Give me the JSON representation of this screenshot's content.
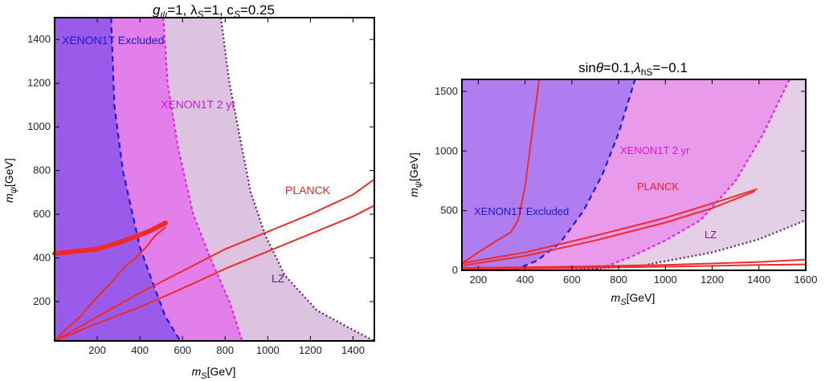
{
  "chart_data": [
    {
      "type": "area",
      "title_parts": [
        "g",
        "ψ",
        "=1, λ",
        "S",
        "=1, c",
        "S",
        "=0.25"
      ],
      "xlabel_parts": [
        "m",
        "S",
        "[GeV]"
      ],
      "ylabel_parts": [
        "m",
        "ψ",
        "[GeV]"
      ],
      "xlim": [
        0,
        1500
      ],
      "ylim": [
        20,
        1500
      ],
      "xticks": [
        200,
        400,
        600,
        800,
        1000,
        1200,
        1400
      ],
      "yticks": [
        200,
        400,
        600,
        800,
        1000,
        1200,
        1400
      ],
      "labels": {
        "xenon1t_excluded": "XENON1T Excluded",
        "xenon1t_2yr": "XENON1T 2 yr",
        "planck": "PLANCK",
        "lz": "LZ"
      },
      "colors": {
        "xenon1t_excluded": "#9a5bea",
        "xenon1t_2yr": "#e27fea",
        "lz": "#dcc3e0",
        "xenon1t_line": "#1a1ae6",
        "xenon2yr_line": "#f01ef0",
        "lz_line": "#5a1a6e",
        "planck": "#ee2a2a"
      },
      "boundaries": {
        "xenon1t_excluded": [
          [
            265,
            1500
          ],
          [
            280,
            1100
          ],
          [
            320,
            800
          ],
          [
            400,
            450
          ],
          [
            470,
            260
          ],
          [
            520,
            130
          ],
          [
            590,
            20
          ]
        ],
        "xenon1t_2yr": [
          [
            510,
            1500
          ],
          [
            530,
            1200
          ],
          [
            580,
            900
          ],
          [
            650,
            600
          ],
          [
            730,
            400
          ],
          [
            820,
            200
          ],
          [
            880,
            20
          ]
        ],
        "lz": [
          [
            780,
            1500
          ],
          [
            820,
            1200
          ],
          [
            870,
            950
          ],
          [
            920,
            700
          ],
          [
            990,
            500
          ],
          [
            1080,
            320
          ],
          [
            1230,
            160
          ],
          [
            1400,
            70
          ],
          [
            1500,
            20
          ]
        ]
      },
      "series": [
        {
          "name": "PLANCK",
          "x": [
            0,
            200,
            400,
            600,
            800,
            1000,
            1200,
            1400,
            1500
          ],
          "y": [
            20,
            130,
            240,
            340,
            440,
            520,
            600,
            690,
            760
          ]
        },
        {
          "name": "PLANCK",
          "x": [
            0,
            200,
            400,
            600,
            800,
            1000,
            1200,
            1400,
            1500
          ],
          "y": [
            20,
            100,
            175,
            260,
            350,
            430,
            510,
            590,
            640
          ]
        },
        {
          "name": "PLANCK",
          "x": [
            0,
            100,
            200,
            300,
            400,
            450,
            480,
            520
          ],
          "y": [
            420,
            430,
            440,
            470,
            505,
            525,
            540,
            560
          ]
        },
        {
          "name": "PLANCK",
          "x": [
            0,
            60,
            120,
            180,
            260,
            330,
            380,
            430,
            470,
            520
          ],
          "y": [
            20,
            80,
            130,
            200,
            280,
            360,
            400,
            450,
            500,
            540
          ]
        }
      ]
    },
    {
      "type": "area",
      "title_parts": [
        "sin",
        "θ",
        "=0.1,",
        "λ",
        "hS",
        "=−0.1"
      ],
      "xlabel_parts": [
        "m",
        "S",
        "[GeV]"
      ],
      "ylabel_parts": [
        "m",
        "ψ",
        "[GeV]"
      ],
      "xlim": [
        130,
        1600
      ],
      "ylim": [
        0,
        1600
      ],
      "xticks": [
        200,
        400,
        600,
        800,
        1000,
        1200,
        1400,
        1600
      ],
      "yticks": [
        0,
        500,
        1000,
        1500
      ],
      "labels": {
        "xenon1t_excluded": "XENON1T Excluded",
        "xenon1t_2yr": "XENON1T 2 yr",
        "planck": "PLANCK",
        "lz": "LZ"
      },
      "colors": {
        "xenon1t_excluded": "#b07df0",
        "xenon1t_2yr": "#ea9aea",
        "lz": "#e4cfe6",
        "xenon1t_line": "#1a1ae6",
        "xenon2yr_line": "#f01ef0",
        "lz_line": "#5a1a6e",
        "planck": "#ee2a2a"
      },
      "boundaries": {
        "xenon1t_excluded": [
          [
            350,
            0
          ],
          [
            450,
            80
          ],
          [
            550,
            230
          ],
          [
            650,
            500
          ],
          [
            730,
            800
          ],
          [
            800,
            1150
          ],
          [
            870,
            1600
          ]
        ],
        "xenon1t_2yr": [
          [
            700,
            0
          ],
          [
            850,
            110
          ],
          [
            1000,
            250
          ],
          [
            1150,
            420
          ],
          [
            1300,
            750
          ],
          [
            1420,
            1150
          ],
          [
            1530,
            1600
          ]
        ],
        "lz": [
          [
            600,
            0
          ],
          [
            900,
            40
          ],
          [
            1200,
            150
          ],
          [
            1400,
            260
          ],
          [
            1600,
            420
          ]
        ]
      },
      "series": [
        {
          "name": "PLANCK",
          "x": [
            130,
            200,
            280,
            340,
            370,
            400,
            420,
            440,
            460
          ],
          "y": [
            60,
            150,
            250,
            320,
            420,
            700,
            1000,
            1300,
            1600
          ]
        },
        {
          "name": "PLANCK",
          "x": [
            130,
            400,
            700,
            1000,
            1200,
            1390
          ],
          "y": [
            60,
            150,
            290,
            440,
            560,
            680
          ]
        },
        {
          "name": "PLANCK",
          "x": [
            130,
            400,
            700,
            1000,
            1200,
            1380
          ],
          "y": [
            40,
            120,
            250,
            400,
            520,
            660
          ]
        },
        {
          "name": "PLANCK",
          "x": [
            130,
            600,
            1000,
            1400,
            1600
          ],
          "y": [
            20,
            30,
            45,
            70,
            90
          ]
        },
        {
          "name": "PLANCK",
          "x": [
            130,
            600,
            1000,
            1400,
            1600
          ],
          "y": [
            10,
            20,
            30,
            45,
            50
          ]
        }
      ]
    }
  ]
}
